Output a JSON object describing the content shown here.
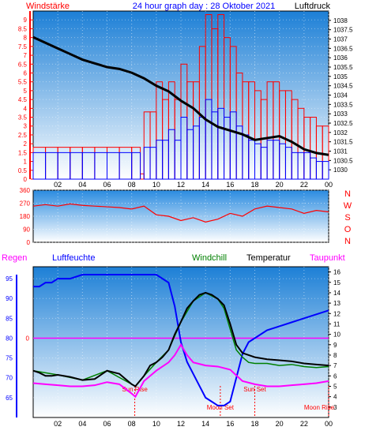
{
  "header": {
    "left_label": "Windstärke",
    "title": "24 hour graph day : 28 Oktober 2021",
    "right_label": "Luftdruck"
  },
  "colors": {
    "wind_gust": "#ff0000",
    "wind_avg": "#0000ff",
    "pressure": "#000000",
    "direction": "#ff0000",
    "temperature": "#000000",
    "windchill": "#008000",
    "humidity": "#0000ff",
    "dewpoint": "#ff00ff",
    "rain_axis": "#ff0000",
    "humidity_axis": "#0000ff",
    "dew_line": "#ff00ff",
    "panel_top": "#1c7fd6",
    "panel_bottom": "#ffffff"
  },
  "chart_data": [
    {
      "type": "line",
      "panel": "wind-pressure",
      "x_ticks": [
        "02",
        "04",
        "06",
        "08",
        "10",
        "12",
        "14",
        "16",
        "18",
        "20",
        "22",
        "00"
      ],
      "xlim": [
        0,
        24
      ],
      "wind_axis": {
        "ylim": [
          0,
          9.5
        ],
        "ticks": [
          "0",
          "0.5",
          "1",
          "1.5",
          "2",
          "2.5",
          "3",
          "3.5",
          "4",
          "4.5",
          "5",
          "5.5",
          "6",
          "6.5",
          "7",
          "7.5",
          "8",
          "8.5",
          "9"
        ]
      },
      "pressure_axis": {
        "ylim": [
          1029.5,
          1038.5
        ],
        "ticks": [
          "1030",
          "1030.5",
          "1031",
          "1031.5",
          "1032",
          "1032.5",
          "1033",
          "1033.5",
          "1034",
          "1034.5",
          "1035",
          "1035.5",
          "1036",
          "1036.5",
          "1037",
          "1037.5",
          "1038"
        ]
      },
      "series": [
        {
          "name": "Windstärke",
          "axis": "wind",
          "color_key": "wind_gust",
          "x": [
            0,
            1,
            2,
            3,
            4,
            5,
            6,
            7,
            8,
            8.7,
            9,
            9.5,
            10,
            10.5,
            11,
            11.5,
            12,
            12.5,
            13,
            13.5,
            14,
            14.5,
            15,
            15.5,
            16,
            16.5,
            17,
            17.5,
            18,
            18.5,
            19,
            19.5,
            20,
            20.5,
            21,
            21.5,
            22,
            22.5,
            23,
            23.5,
            24
          ],
          "y": [
            1.8,
            1.8,
            1.8,
            1.8,
            1.8,
            1.8,
            1.8,
            1.8,
            1.8,
            0.3,
            3.8,
            3.8,
            5.5,
            4.5,
            5.5,
            4.5,
            6.5,
            5.5,
            5.5,
            7.5,
            9.3,
            8.5,
            9.3,
            8,
            7.5,
            6,
            5.5,
            5.5,
            5,
            4.5,
            5.5,
            5.5,
            5,
            5,
            4.5,
            4,
            3.5,
            3.5,
            3,
            3,
            3
          ]
        },
        {
          "name": "",
          "axis": "wind",
          "color_key": "wind_avg",
          "x": [
            0,
            1,
            2,
            3,
            4,
            5,
            6,
            7,
            8,
            8.7,
            9,
            9.5,
            10,
            10.5,
            11,
            11.5,
            12,
            12.5,
            13,
            13.5,
            14,
            14.5,
            15,
            15.5,
            16,
            16.5,
            17,
            17.5,
            18,
            18.5,
            19,
            19.5,
            20,
            20.5,
            21,
            21.5,
            22,
            22.5,
            23,
            23.5,
            24
          ],
          "y": [
            1.5,
            1.5,
            1.5,
            1.5,
            1.5,
            1.5,
            1.5,
            1.5,
            1.5,
            0,
            1.8,
            1.8,
            2.2,
            2.2,
            2.8,
            2.2,
            3.5,
            2.8,
            3,
            3.5,
            4.5,
            3.8,
            4,
            3.5,
            3.8,
            3,
            2.5,
            2.2,
            2,
            1.8,
            2.2,
            2.2,
            2,
            1.8,
            1.5,
            1.5,
            1.5,
            1.2,
            1,
            1,
            1
          ]
        },
        {
          "name": "Luftdruck",
          "axis": "pressure",
          "color_key": "pressure",
          "x": [
            0,
            1,
            2,
            3,
            4,
            5,
            6,
            7,
            8,
            9,
            10,
            11,
            12,
            13,
            14,
            15,
            16,
            17,
            18,
            19,
            20,
            21,
            22,
            23,
            24
          ],
          "y": [
            1037.1,
            1036.8,
            1036.5,
            1036.2,
            1035.9,
            1035.7,
            1035.5,
            1035.4,
            1035.2,
            1034.9,
            1034.5,
            1034.2,
            1033.7,
            1033.3,
            1032.7,
            1032.3,
            1032.1,
            1031.9,
            1031.6,
            1031.7,
            1031.8,
            1031.5,
            1031.1,
            1030.9,
            1030.8
          ]
        }
      ]
    },
    {
      "type": "line",
      "panel": "wind-direction",
      "ylim": [
        0,
        360
      ],
      "y_ticks": [
        "0",
        "90",
        "180",
        "270",
        "360"
      ],
      "compass": [
        "N",
        "W",
        "S",
        "O",
        "N"
      ],
      "series": [
        {
          "name": "",
          "color_key": "direction",
          "x": [
            0,
            1,
            2,
            3,
            4,
            5,
            6,
            7,
            8,
            9,
            10,
            11,
            12,
            13,
            14,
            15,
            16,
            17,
            18,
            19,
            20,
            21,
            22,
            23,
            24
          ],
          "y": [
            250,
            260,
            250,
            265,
            255,
            250,
            245,
            240,
            230,
            250,
            190,
            180,
            150,
            170,
            140,
            160,
            200,
            180,
            230,
            250,
            240,
            230,
            200,
            220,
            210
          ]
        }
      ]
    },
    {
      "type": "line",
      "panel": "temp-humidity",
      "legend": [
        "Regen",
        "Luftfeuchte",
        "Windchill",
        "Temperatur",
        "Taupunkt"
      ],
      "humidity_axis": {
        "ylim": [
          60,
          98
        ],
        "ticks": [
          "65",
          "70",
          "75",
          "80",
          "85",
          "90",
          "95"
        ]
      },
      "temp_axis": {
        "ylim": [
          2,
          16.5
        ],
        "ticks": [
          "3",
          "4",
          "5",
          "6",
          "7",
          "8",
          "9",
          "10",
          "11",
          "12",
          "13",
          "14",
          "15",
          "16"
        ]
      },
      "rain_axis": {
        "ticks": [
          "0"
        ]
      },
      "annotations": [
        "Sun Rise",
        "Sun Set",
        "Moon Set",
        "Moon Rise"
      ],
      "series": [
        {
          "name": "Luftfeuchte",
          "axis": "humidity",
          "color_key": "humidity",
          "x": [
            0,
            0.5,
            1,
            1.5,
            2,
            3,
            4,
            5,
            6,
            7,
            8,
            9,
            10,
            11,
            11.5,
            12,
            12.5,
            13,
            13.5,
            14,
            14.5,
            15,
            15.5,
            16,
            16.5,
            17,
            17.5,
            18,
            19,
            20,
            21,
            22,
            23,
            24
          ],
          "y": [
            93,
            93,
            94,
            94,
            95,
            95,
            96,
            96,
            96,
            96,
            96,
            96,
            96,
            94,
            88,
            79,
            74,
            71,
            68,
            65,
            64,
            63,
            63,
            64,
            70,
            76,
            79,
            80,
            82,
            83,
            84,
            85,
            86,
            87
          ]
        },
        {
          "name": "Temperatur",
          "axis": "temp",
          "color_key": "temperature",
          "x": [
            0,
            0.5,
            1,
            1.5,
            2,
            3,
            4,
            5,
            6,
            7,
            8,
            8.3,
            9,
            9.5,
            10,
            10.5,
            11,
            11.5,
            12,
            12.5,
            13,
            13.5,
            14,
            14.5,
            15,
            15.5,
            16,
            16.5,
            17,
            17.5,
            18,
            19,
            20,
            21,
            22,
            23,
            24
          ],
          "y": [
            6.5,
            6.3,
            6,
            6,
            6.1,
            5.9,
            5.6,
            5.7,
            6.5,
            6.2,
            5.2,
            5,
            6,
            7,
            7.3,
            7.8,
            8.5,
            10,
            11.2,
            12.5,
            13.2,
            13.8,
            14,
            13.8,
            13.4,
            12.8,
            11,
            9,
            8.2,
            8,
            7.8,
            7.6,
            7.5,
            7.4,
            7.2,
            7.1,
            7
          ]
        },
        {
          "name": "Windchill",
          "axis": "temp",
          "color_key": "windchill",
          "x": [
            0,
            2,
            4,
            6,
            8,
            8.3,
            9,
            10,
            11,
            12,
            13,
            14,
            15,
            15.5,
            16,
            16.5,
            17,
            17.5,
            18,
            19,
            20,
            21,
            22,
            23,
            24
          ],
          "y": [
            6.5,
            6.1,
            5.6,
            6.5,
            5.2,
            5,
            6,
            7.3,
            8.5,
            11.2,
            13.2,
            14,
            13.4,
            12.5,
            10.5,
            8.5,
            7.8,
            7.3,
            7.2,
            7.2,
            7,
            7.1,
            6.9,
            6.8,
            6.9
          ]
        },
        {
          "name": "Taupunkt",
          "axis": "temp",
          "color_key": "dewpoint",
          "x": [
            0,
            1,
            2,
            3,
            4,
            5,
            6,
            7,
            8,
            8.3,
            9,
            10,
            11,
            11.5,
            12,
            12.5,
            13,
            14,
            15,
            16,
            17,
            18,
            19,
            20,
            21,
            22,
            23,
            24
          ],
          "y": [
            5.3,
            5.2,
            5.1,
            5,
            5,
            5.1,
            5.4,
            5.2,
            4.3,
            4,
            5.5,
            6.5,
            7.3,
            8,
            9,
            8,
            7.3,
            7,
            6.9,
            6.6,
            5.5,
            5.2,
            5,
            5,
            5.1,
            5.2,
            5.3,
            5.5
          ]
        }
      ]
    }
  ]
}
